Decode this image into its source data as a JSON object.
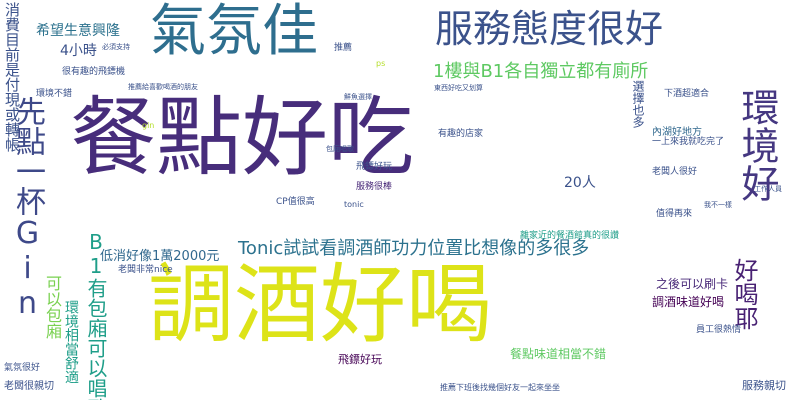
{
  "words": [
    {
      "text": "餐點好吃",
      "color": "#472d7b",
      "size": 86
    },
    {
      "text": "調酒好喝",
      "color": "#dde318",
      "size": 86
    },
    {
      "text": "氣氛佳",
      "color": "#2e6e8e",
      "size": 56
    },
    {
      "text": "服務態度很好",
      "color": "#3b528b",
      "size": 38
    },
    {
      "text": "環境好",
      "color": "#453781",
      "size": 38
    },
    {
      "text": "先點一杯Gin",
      "color": "#3e4989",
      "size": 30
    },
    {
      "text": "1樓與B1各自獨立都有廁所",
      "color": "#5ec962",
      "size": 18
    },
    {
      "text": "Tonic試試看調酒師功力位置比想像的多很多",
      "color": "#2c728e",
      "size": 18
    },
    {
      "text": "好喝耶",
      "color": "#482173",
      "size": 24
    },
    {
      "text": "B1有包廂可以唱歌",
      "color": "#1f9e89",
      "size": 20
    },
    {
      "text": "消費目前是付現或轉帳",
      "color": "#3b528b",
      "size": 15
    },
    {
      "text": "希望生意興隆",
      "color": "#2c728e",
      "size": 14
    },
    {
      "text": "4小時",
      "color": "#3b528b",
      "size": 14
    },
    {
      "text": "20人",
      "color": "#3b528b",
      "size": 14
    },
    {
      "text": "低消好像1萬2000元",
      "color": "#31688e",
      "size": 13
    },
    {
      "text": "選擇也多",
      "color": "#3b528b",
      "size": 12
    },
    {
      "text": "調酒味道好喝",
      "color": "#440154",
      "size": 12
    },
    {
      "text": "之後可以刷卡",
      "color": "#482878",
      "size": 12
    },
    {
      "text": "餐點味道相當不錯",
      "color": "#5ec962",
      "size": 12
    },
    {
      "text": "服務親切",
      "color": "#3b528b",
      "size": 11
    },
    {
      "text": "可以包廂",
      "color": "#7ad151",
      "size": 16
    },
    {
      "text": "環境相當舒適",
      "color": "#1f9e89",
      "size": 14
    },
    {
      "text": "飛鏢好玩",
      "color": "#440154",
      "size": 11
    },
    {
      "text": "老闆很親切",
      "color": "#3b528b",
      "size": 10
    },
    {
      "text": "老闆非常nice",
      "color": "#3b528b",
      "size": 9
    },
    {
      "text": "離家近的餐酒館真的很讚",
      "color": "#1f9e89",
      "size": 9
    },
    {
      "text": "CP值很高",
      "color": "#3b528b",
      "size": 9
    },
    {
      "text": "服務很棒",
      "color": "#482878",
      "size": 9
    },
    {
      "text": "有趣的店家",
      "color": "#3b528b",
      "size": 9
    },
    {
      "text": "內湖好地方",
      "color": "#31688e",
      "size": 10
    },
    {
      "text": "下酒超適合",
      "color": "#3b528b",
      "size": 9
    },
    {
      "text": "老闆人很好",
      "color": "#3b528b",
      "size": 9
    },
    {
      "text": "值得再來",
      "color": "#3b528b",
      "size": 9
    },
    {
      "text": "員工很熱情",
      "color": "#3b528b",
      "size": 9
    },
    {
      "text": "很有趣的飛鏢機",
      "color": "#3b528b",
      "size": 9
    },
    {
      "text": "環境不錯",
      "color": "#3b528b",
      "size": 9
    },
    {
      "text": "推薦",
      "color": "#3b528b",
      "size": 9
    },
    {
      "text": "一上來我就吃完了",
      "color": "#3b528b",
      "size": 9
    },
    {
      "text": "工作人員",
      "color": "#3b528b",
      "size": 7
    },
    {
      "text": "氣氛很好",
      "color": "#3b528b",
      "size": 9
    },
    {
      "text": "包廂唱歌",
      "color": "#3b528b",
      "size": 7
    },
    {
      "text": "推薦下班後找幾個好友一起來坐坐",
      "color": "#3b528b",
      "size": 8
    },
    {
      "text": "gin",
      "color": "#b5de2b",
      "size": 8
    },
    {
      "text": "ps",
      "color": "#b5de2b",
      "size": 8
    },
    {
      "text": "tonic",
      "color": "#3b528b",
      "size": 8
    },
    {
      "text": "我不一樣",
      "color": "#3b528b",
      "size": 7
    },
    {
      "text": "鮮魚選擇",
      "color": "#3b528b",
      "size": 7
    },
    {
      "text": "飛鏢好玩",
      "color": "#3b528b",
      "size": 9
    },
    {
      "text": "東西好吃又划算",
      "color": "#3b528b",
      "size": 7
    },
    {
      "text": "必須支持",
      "color": "#3b528b",
      "size": 7
    },
    {
      "text": "推薦給喜歡喝酒的朋友",
      "color": "#3b528b",
      "size": 7
    }
  ]
}
